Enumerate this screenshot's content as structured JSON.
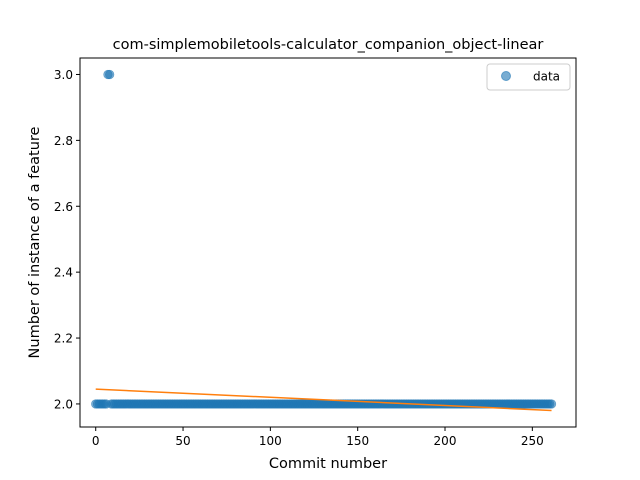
{
  "chart_data": {
    "type": "scatter",
    "title": "com-simplemobiletools-calculator_companion_object-linear",
    "xlabel": "Commit number",
    "ylabel": "Number of instance of a feature",
    "xlim": [
      -9,
      275
    ],
    "ylim": [
      1.93,
      3.05
    ],
    "xticks": [
      0,
      50,
      100,
      150,
      200,
      250
    ],
    "yticks": [
      2.0,
      2.2,
      2.4,
      2.6,
      2.8,
      3.0
    ],
    "xtick_labels": [
      "0",
      "50",
      "100",
      "150",
      "200",
      "250"
    ],
    "ytick_labels": [
      "2.0",
      "2.2",
      "2.4",
      "2.6",
      "2.8",
      "3.0"
    ],
    "grid": false,
    "legend": {
      "position": "top-right",
      "entries": [
        "data"
      ]
    },
    "series": [
      {
        "name": "data",
        "kind": "scatter",
        "color": "#1f77b4",
        "opacity": 0.6,
        "runs": [
          {
            "x_start": 0,
            "x_end": 6,
            "y": 2.0
          },
          {
            "x_start": 7,
            "x_end": 8,
            "y": 3.0
          },
          {
            "x_start": 9,
            "x_end": 261,
            "y": 2.0
          }
        ]
      },
      {
        "kind": "line",
        "color": "#ff7f0e",
        "x": [
          0,
          261
        ],
        "y": [
          2.045,
          1.98
        ]
      }
    ]
  }
}
